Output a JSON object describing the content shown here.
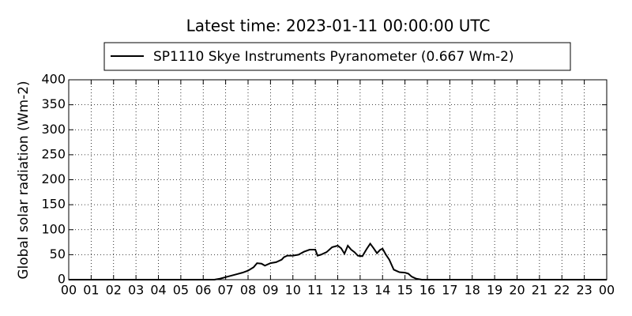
{
  "chart_data": {
    "type": "line",
    "title": "Latest time: 2023-01-11 00:00:00 UTC",
    "y_label": "Global solar radiation (Wm-2)",
    "series": [
      {
        "name": "SP1110 Skye Instruments Pyranometer (0.667 Wm-2)",
        "color": "#000000",
        "x": [
          0,
          6.5,
          6.75,
          7,
          7.25,
          7.5,
          7.75,
          8,
          8.25,
          8.4,
          8.6,
          8.75,
          9,
          9.25,
          9.5,
          9.6,
          9.75,
          10,
          10.25,
          10.5,
          10.75,
          11,
          11.1,
          11.25,
          11.5,
          11.75,
          12,
          12.15,
          12.3,
          12.45,
          12.6,
          12.75,
          12.9,
          13.1,
          13.3,
          13.45,
          13.6,
          13.75,
          13.9,
          14,
          14.15,
          14.3,
          14.5,
          14.75,
          15,
          15.15,
          15.3,
          15.5,
          15.75,
          24
        ],
        "values": [
          0,
          0,
          2,
          5,
          8,
          11,
          14,
          18,
          25,
          33,
          32,
          28,
          33,
          35,
          40,
          45,
          48,
          48,
          50,
          56,
          60,
          60,
          48,
          50,
          55,
          65,
          68,
          63,
          52,
          68,
          60,
          55,
          48,
          47,
          62,
          72,
          63,
          53,
          60,
          62,
          50,
          40,
          20,
          15,
          14,
          12,
          6,
          2,
          0,
          0
        ]
      }
    ],
    "xlim": [
      0,
      24
    ],
    "xticks": [
      {
        "value": 0,
        "label": "00"
      },
      {
        "value": 1,
        "label": "01"
      },
      {
        "value": 2,
        "label": "02"
      },
      {
        "value": 3,
        "label": "03"
      },
      {
        "value": 4,
        "label": "04"
      },
      {
        "value": 5,
        "label": "05"
      },
      {
        "value": 6,
        "label": "06"
      },
      {
        "value": 7,
        "label": "07"
      },
      {
        "value": 8,
        "label": "08"
      },
      {
        "value": 9,
        "label": "09"
      },
      10,
      11,
      12,
      13,
      14,
      15,
      16,
      17,
      18,
      19,
      20,
      21,
      22,
      23,
      {
        "value": 24,
        "label": "00"
      }
    ],
    "ylim": [
      0,
      400
    ],
    "yticks": [
      0,
      50,
      100,
      150,
      200,
      250,
      300,
      350,
      400
    ],
    "grid": true
  }
}
